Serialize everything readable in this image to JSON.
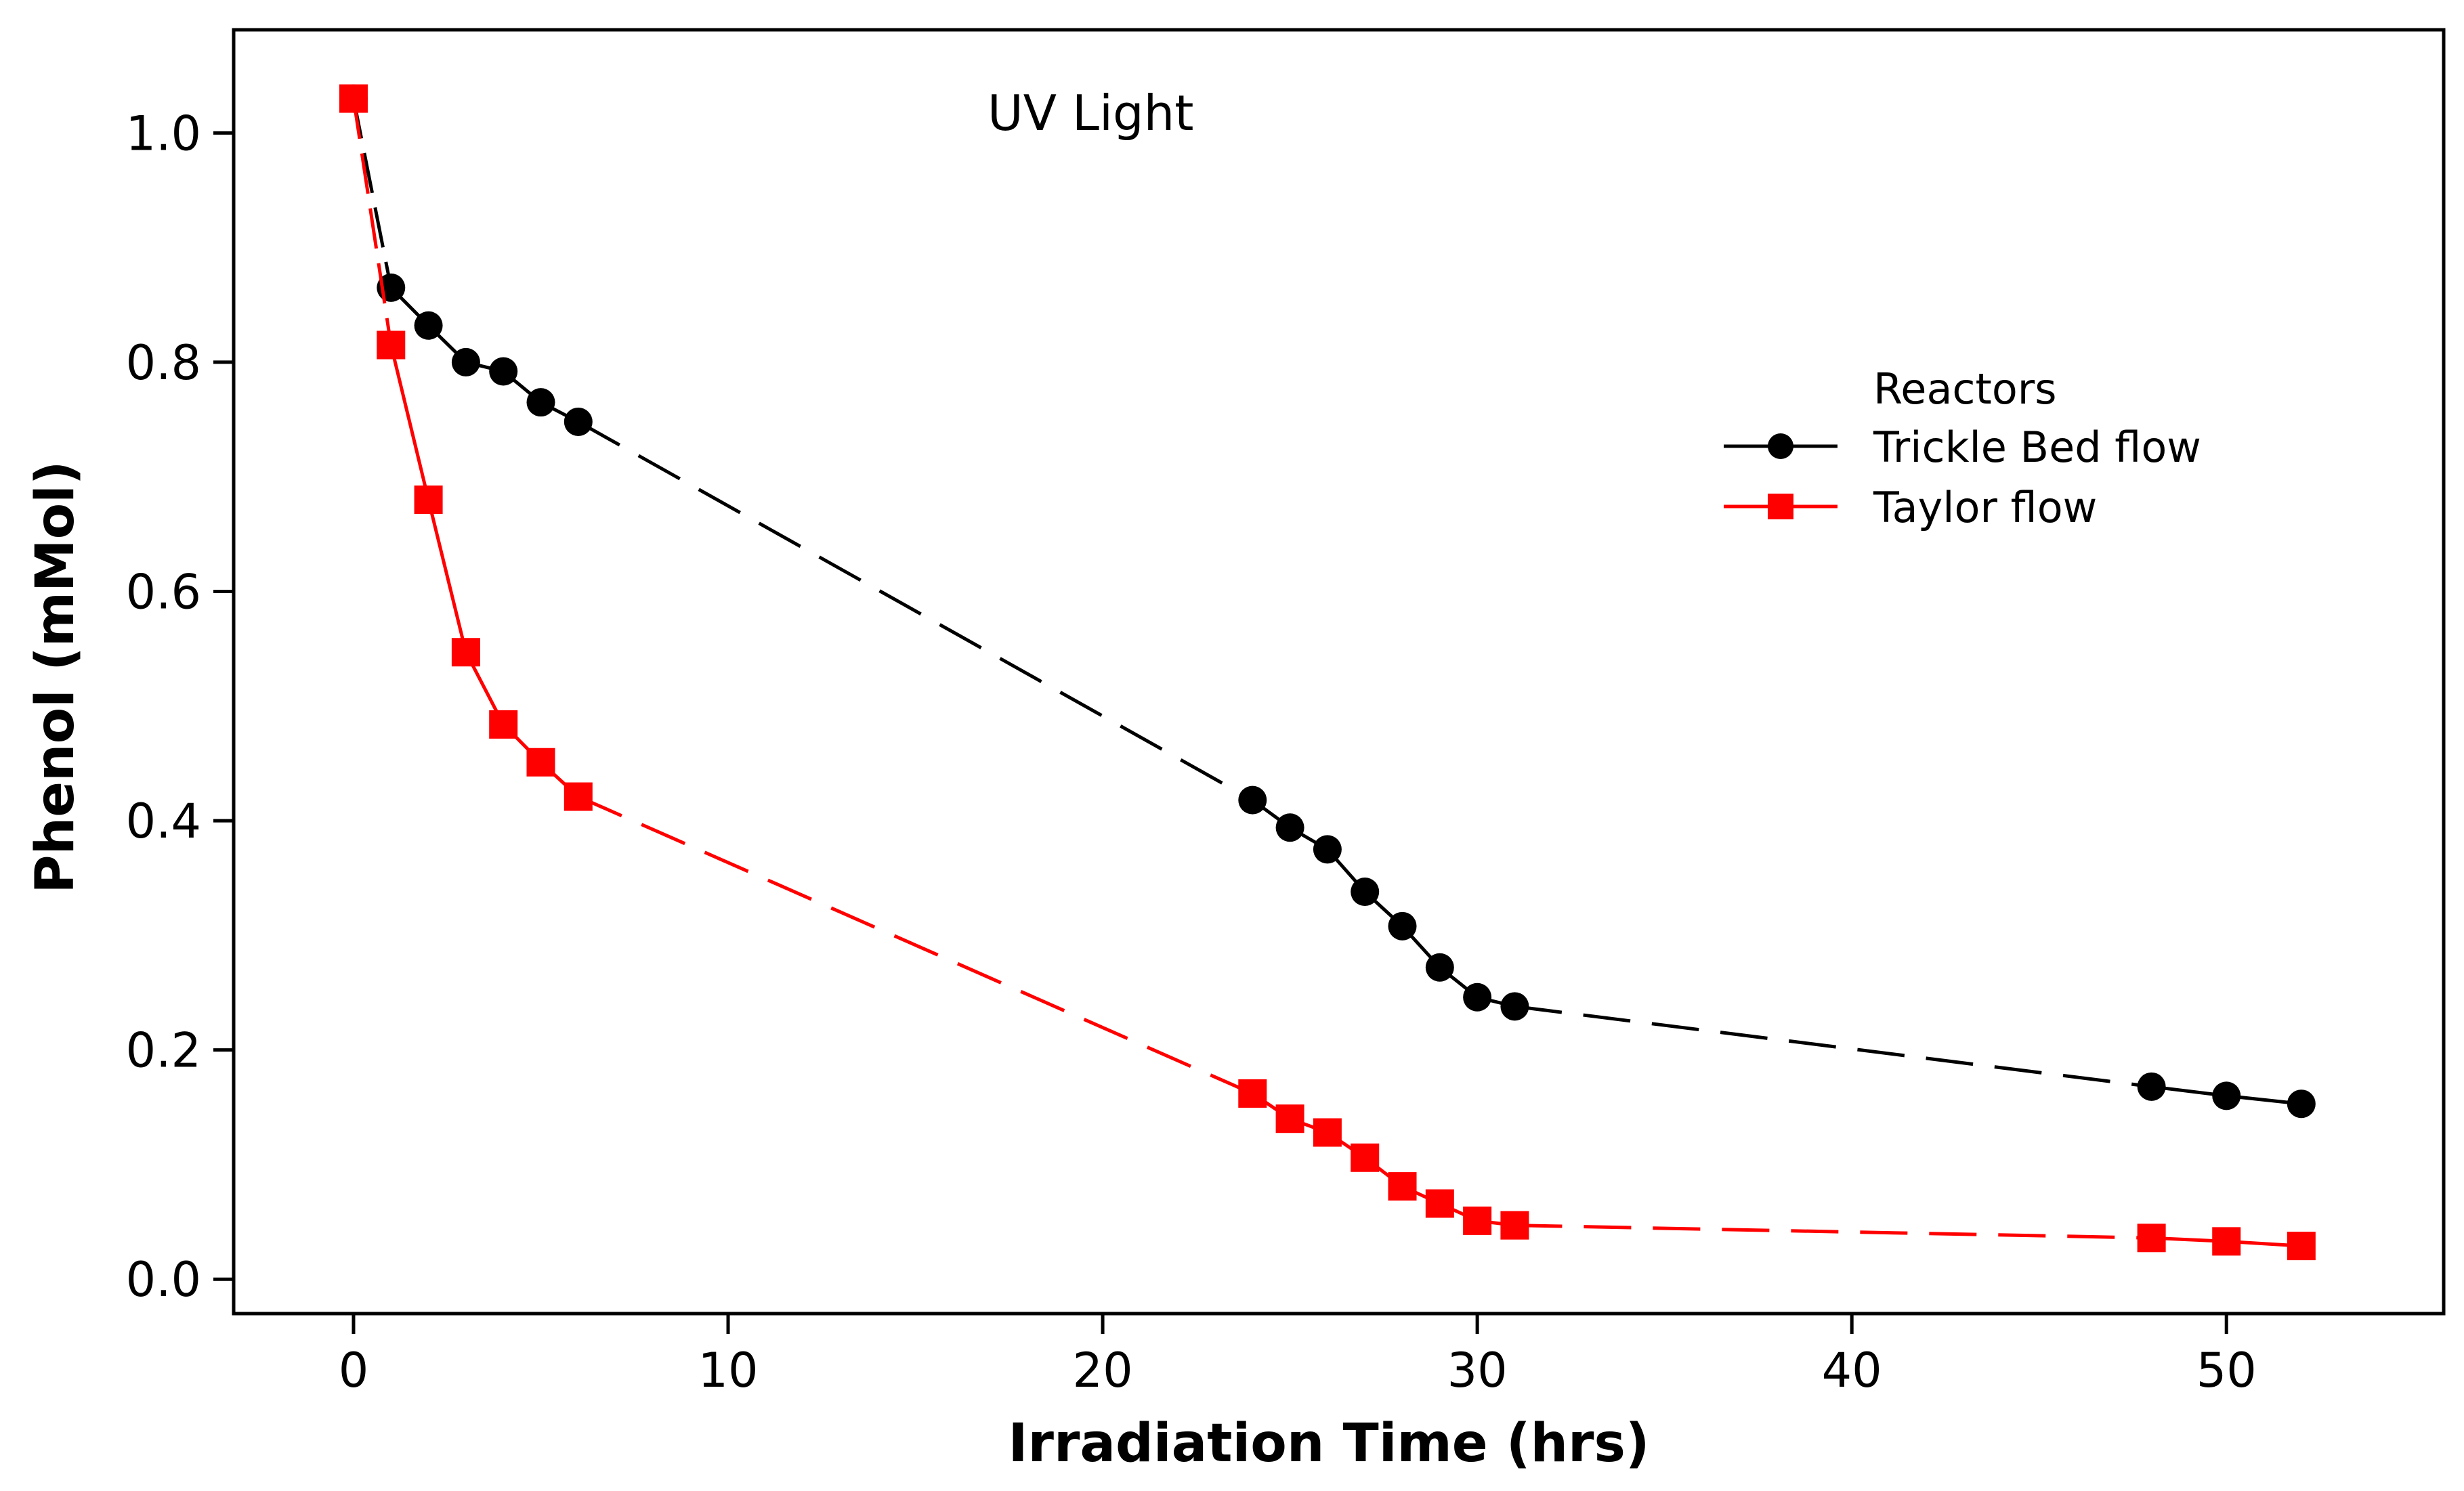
{
  "chart_data": {
    "type": "line",
    "title": "",
    "annotation": "UV Light",
    "xlabel": "Irradiation Time (hrs)",
    "ylabel": "Phenol (mMol)",
    "xlim": [
      -3.2,
      55.8
    ],
    "ylim": [
      -0.03,
      1.09
    ],
    "xticks": [
      0,
      10,
      20,
      30,
      40,
      50
    ],
    "yticks": [
      0.0,
      0.2,
      0.4,
      0.6,
      0.8,
      1.0
    ],
    "xtick_labels": [
      "0",
      "10",
      "20",
      "30",
      "40",
      "50"
    ],
    "ytick_labels": [
      "0.0",
      "0.2",
      "0.4",
      "0.6",
      "0.8",
      "1.0"
    ],
    "grid": false,
    "legend": {
      "title": "Reactors",
      "placement": "right-upper"
    },
    "series": [
      {
        "name": "Trickle Bed flow",
        "color": "#000000",
        "marker": "circle",
        "x": [
          0,
          1,
          2,
          3,
          4,
          5,
          6,
          24,
          25,
          26,
          27,
          28,
          29,
          30,
          31,
          48,
          50,
          52
        ],
        "y": [
          1.03,
          0.865,
          0.832,
          0.8,
          0.792,
          0.765,
          0.748,
          0.418,
          0.394,
          0.375,
          0.338,
          0.308,
          0.272,
          0.246,
          0.238,
          0.168,
          0.16,
          0.153
        ]
      },
      {
        "name": "Taylor flow",
        "color": "#ff0000",
        "marker": "square",
        "x": [
          0,
          1,
          2,
          3,
          4,
          5,
          6,
          24,
          25,
          26,
          27,
          28,
          29,
          30,
          31,
          48,
          50,
          52
        ],
        "y": [
          1.03,
          0.815,
          0.68,
          0.547,
          0.484,
          0.451,
          0.421,
          0.162,
          0.14,
          0.128,
          0.106,
          0.081,
          0.066,
          0.051,
          0.047,
          0.036,
          0.033,
          0.029
        ]
      }
    ]
  }
}
